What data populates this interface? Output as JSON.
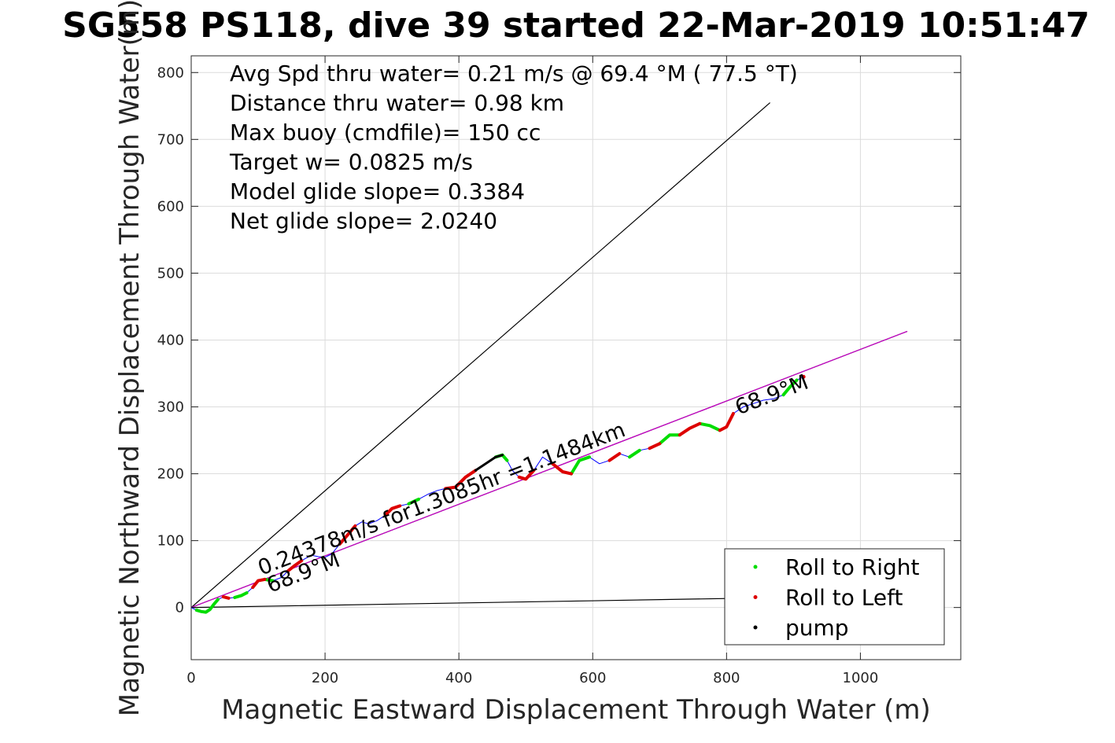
{
  "chart_data": {
    "type": "line",
    "title": "SG558 PS118, dive 39 started 22-Mar-2019 10:51:47",
    "xlabel": "Magnetic Eastward Displacement Through Water (m)",
    "ylabel": "Magnetic Northward Displacement Through Water(m)",
    "xlim": [
      0,
      1150
    ],
    "ylim": [
      -78,
      825
    ],
    "xticks": [
      0,
      200,
      400,
      600,
      800,
      1000
    ],
    "yticks": [
      0,
      100,
      200,
      300,
      400,
      500,
      600,
      700,
      800
    ],
    "grid": true,
    "info_lines": [
      "Avg Spd thru water=  0.21 m/s @  69.4 °M ( 77.5 °T)",
      "Distance thru water=  0.98 km",
      "Max buoy (cmdfile)= 150 cc",
      "Target w= 0.0825 m/s",
      "Model glide slope= 0.3384",
      "Net glide slope= 2.0240"
    ],
    "reference_lines": [
      {
        "x": [
          0,
          865
        ],
        "y": [
          0,
          755
        ],
        "color": "#000000"
      },
      {
        "x": [
          0,
          1070
        ],
        "y": [
          0,
          413
        ],
        "color": "#000000"
      },
      {
        "x": [
          0,
          1070
        ],
        "y": [
          0,
          413
        ],
        "color": "#cc00cc"
      },
      {
        "x": [
          0,
          1070
        ],
        "y": [
          0,
          18
        ],
        "color": "#000000"
      }
    ],
    "track": {
      "color": "#0000ff",
      "x": [
        0,
        8,
        15,
        22,
        28,
        34,
        40,
        48,
        56,
        65,
        75,
        83,
        92,
        100,
        110,
        122,
        135,
        145,
        155,
        165,
        172,
        180,
        190,
        200,
        210,
        222,
        235,
        245,
        255,
        265,
        278,
        290,
        300,
        312,
        325,
        340,
        355,
        368,
        380,
        395,
        410,
        425,
        440,
        455,
        465,
        472,
        480,
        490,
        500,
        512,
        525,
        540,
        555,
        568,
        580,
        595,
        610,
        625,
        640,
        655,
        670,
        685,
        700,
        715,
        730,
        745,
        760,
        775,
        790,
        800,
        810,
        825,
        840,
        855,
        870,
        885,
        895,
        905,
        915
      ],
      "y": [
        0,
        -4,
        -6,
        -7,
        -3,
        5,
        12,
        16,
        14,
        15,
        18,
        22,
        30,
        40,
        42,
        40,
        45,
        55,
        63,
        70,
        74,
        78,
        76,
        75,
        80,
        95,
        110,
        122,
        128,
        125,
        130,
        138,
        148,
        152,
        155,
        162,
        170,
        175,
        178,
        180,
        195,
        205,
        215,
        225,
        228,
        220,
        205,
        195,
        192,
        205,
        225,
        215,
        203,
        200,
        220,
        225,
        215,
        220,
        230,
        225,
        235,
        238,
        245,
        258,
        258,
        268,
        275,
        272,
        265,
        270,
        290,
        300,
        305,
        310,
        312,
        318,
        330,
        340,
        345
      ],
      "roll_right": {
        "color": "#00dd00",
        "segments": [
          [
            1,
            6
          ],
          [
            9,
            11
          ],
          [
            14,
            15
          ],
          [
            34,
            35
          ],
          [
            43,
            45
          ],
          [
            53,
            55
          ],
          [
            59,
            60
          ],
          [
            62,
            64
          ],
          [
            66,
            68
          ],
          [
            75,
            77
          ]
        ]
      },
      "roll_left": {
        "color": "#dd0000",
        "segments": [
          [
            7,
            8
          ],
          [
            12,
            14
          ],
          [
            17,
            19
          ],
          [
            25,
            27
          ],
          [
            31,
            33
          ],
          [
            38,
            41
          ],
          [
            47,
            49
          ],
          [
            51,
            53
          ],
          [
            57,
            58
          ],
          [
            61,
            62
          ],
          [
            64,
            66
          ],
          [
            68,
            70
          ],
          [
            78,
            78
          ]
        ]
      },
      "pump": {
        "color": "#000000",
        "segments": [
          [
            41,
            44
          ]
        ]
      }
    },
    "annotations": [
      {
        "text": "0.24378m/s for1.3085hr =1.1484km",
        "x": 105,
        "y": 48,
        "angle": -21
      },
      {
        "text": "68.9°M",
        "x": 118,
        "y": 22,
        "angle": -21
      },
      {
        "text": "68.9°M",
        "x": 818,
        "y": 288,
        "angle": -21
      }
    ],
    "legend": {
      "position": "bottom-right",
      "entries": [
        {
          "label": "Roll to Right",
          "color": "#00dd00"
        },
        {
          "label": "Roll to Left",
          "color": "#dd0000"
        },
        {
          "label": "pump",
          "color": "#000000"
        }
      ]
    }
  }
}
